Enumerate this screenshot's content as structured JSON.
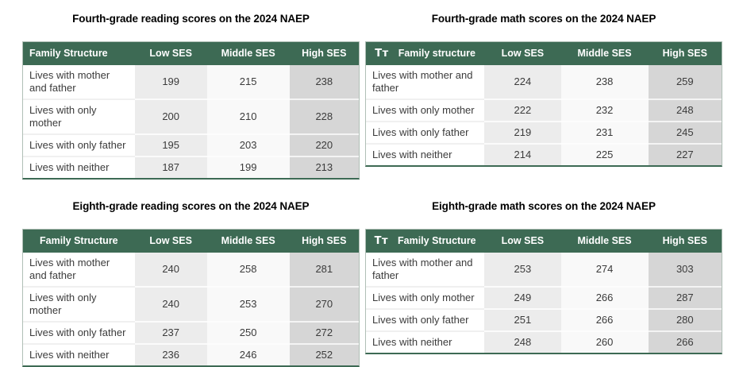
{
  "colors": {
    "header_bg": "#3d6a54",
    "header_text": "#ffffff",
    "column_low_ses_bg": "#ececec",
    "column_middle_ses_bg": "#f9f9f9",
    "column_high_ses_bg": "#d6d6d6",
    "table_bottom_border": "#3d6a54",
    "body_text": "#3b3b3b"
  },
  "icons": {
    "text_format_glyph": "Tᴛ"
  },
  "chart_data": [
    {
      "type": "table",
      "title": "Fourth-grade reading scores on the 2024 NAEP",
      "columns": [
        "Family Structure",
        "Low SES",
        "Middle SES",
        "High SES"
      ],
      "family_header_align": "left",
      "has_text_icon": false,
      "rows": [
        {
          "label": "Lives with mother and father",
          "values": [
            199,
            215,
            238
          ]
        },
        {
          "label": "Lives with only mother",
          "values": [
            200,
            210,
            228
          ]
        },
        {
          "label": "Lives with only father",
          "values": [
            195,
            203,
            220
          ]
        },
        {
          "label": "Lives with neither",
          "values": [
            187,
            199,
            213
          ]
        }
      ]
    },
    {
      "type": "table",
      "title": "Fourth-grade math scores on the 2024 NAEP",
      "columns": [
        "Family structure",
        "Low SES",
        "Middle SES",
        "High SES"
      ],
      "family_header_align": "center",
      "has_text_icon": true,
      "rows": [
        {
          "label": "Lives with mother and father",
          "values": [
            224,
            238,
            259
          ]
        },
        {
          "label": "Lives with only mother",
          "values": [
            222,
            232,
            248
          ]
        },
        {
          "label": "Lives with only father",
          "values": [
            219,
            231,
            245
          ]
        },
        {
          "label": "Lives with neither",
          "values": [
            214,
            225,
            227
          ]
        }
      ]
    },
    {
      "type": "table",
      "title": "Eighth-grade reading scores on the 2024 NAEP",
      "columns": [
        "Family Structure",
        "Low SES",
        "Middle SES",
        "High SES"
      ],
      "family_header_align": "center",
      "has_text_icon": false,
      "rows": [
        {
          "label": "Lives with mother and father",
          "values": [
            240,
            258,
            281
          ]
        },
        {
          "label": "Lives with only mother",
          "values": [
            240,
            253,
            270
          ]
        },
        {
          "label": "Lives with only father",
          "values": [
            237,
            250,
            272
          ]
        },
        {
          "label": "Lives with neither",
          "values": [
            236,
            246,
            252
          ]
        }
      ]
    },
    {
      "type": "table",
      "title": "Eighth-grade math scores on the 2024 NAEP",
      "columns": [
        "Family Structure",
        "Low SES",
        "Middle SES",
        "High SES"
      ],
      "family_header_align": "center",
      "has_text_icon": true,
      "rows": [
        {
          "label": "Lives with mother and father",
          "values": [
            253,
            274,
            303
          ]
        },
        {
          "label": "Lives with only mother",
          "values": [
            249,
            266,
            287
          ]
        },
        {
          "label": "Lives with only father",
          "values": [
            251,
            266,
            280
          ]
        },
        {
          "label": "Lives with neither",
          "values": [
            248,
            260,
            266
          ]
        }
      ]
    }
  ]
}
